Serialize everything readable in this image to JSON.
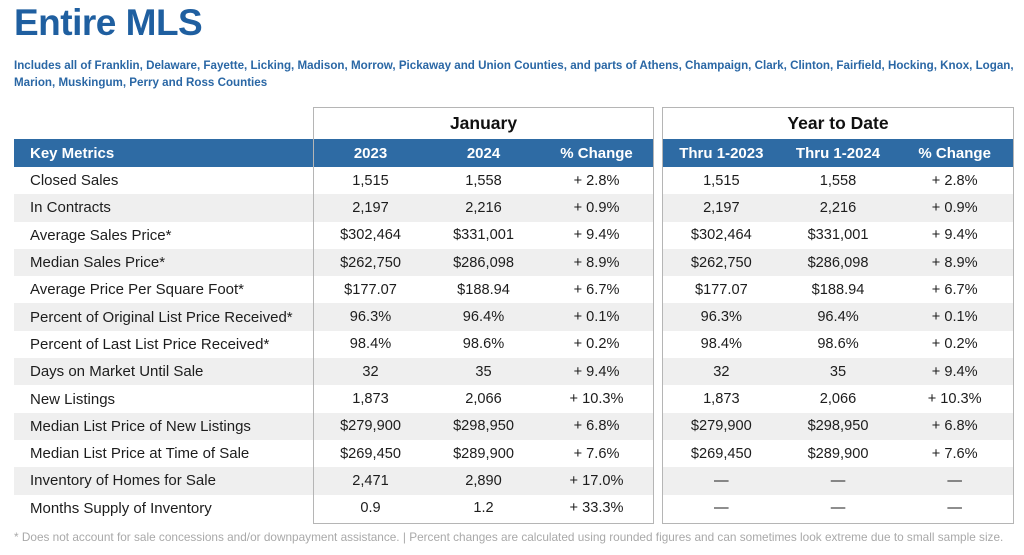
{
  "page": {
    "title": "Entire MLS",
    "subtitle": "Includes all of Franklin, Delaware, Fayette, Licking, Madison, Morrow, Pickaway and Union Counties, and parts of Athens, Champaign, Clark, Clinton, Fairfield, Hocking, Knox, Logan, Marion, Muskingum, Perry and Ross Counties",
    "footnote": "* Does not account for sale concessions and/or downpayment assistance. | Percent changes are calculated using rounded figures and can sometimes look extreme due to small sample size."
  },
  "colors": {
    "title_blue": "#1f5fa0",
    "header_bar_blue": "#2e6ba4",
    "row_stripe": "#efefef",
    "box_border": "#b5b5b5",
    "footnote_gray": "#a9a9a9"
  },
  "table": {
    "metrics_header": "Key Metrics",
    "groups": [
      {
        "label": "January",
        "columns": [
          "2023",
          "2024",
          "% Change"
        ]
      },
      {
        "label": "Year to Date",
        "columns": [
          "Thru 1-2023",
          "Thru 1-2024",
          "% Change"
        ]
      }
    ],
    "rows": [
      {
        "metric": "Closed Sales",
        "january": [
          "1,515",
          "1,558",
          "+ 2.8%"
        ],
        "ytd": [
          "1,515",
          "1,558",
          "+ 2.8%"
        ]
      },
      {
        "metric": "In Contracts",
        "january": [
          "2,197",
          "2,216",
          "+ 0.9%"
        ],
        "ytd": [
          "2,197",
          "2,216",
          "+ 0.9%"
        ]
      },
      {
        "metric": "Average Sales Price*",
        "january": [
          "$302,464",
          "$331,001",
          "+ 9.4%"
        ],
        "ytd": [
          "$302,464",
          "$331,001",
          "+ 9.4%"
        ]
      },
      {
        "metric": "Median Sales Price*",
        "january": [
          "$262,750",
          "$286,098",
          "+ 8.9%"
        ],
        "ytd": [
          "$262,750",
          "$286,098",
          "+ 8.9%"
        ]
      },
      {
        "metric": "Average Price Per Square Foot*",
        "january": [
          "$177.07",
          "$188.94",
          "+ 6.7%"
        ],
        "ytd": [
          "$177.07",
          "$188.94",
          "+ 6.7%"
        ]
      },
      {
        "metric": "Percent of Original List Price Received*",
        "january": [
          "96.3%",
          "96.4%",
          "+ 0.1%"
        ],
        "ytd": [
          "96.3%",
          "96.4%",
          "+ 0.1%"
        ]
      },
      {
        "metric": "Percent of Last List Price Received*",
        "january": [
          "98.4%",
          "98.6%",
          "+ 0.2%"
        ],
        "ytd": [
          "98.4%",
          "98.6%",
          "+ 0.2%"
        ]
      },
      {
        "metric": "Days on Market Until Sale",
        "january": [
          "32",
          "35",
          "+ 9.4%"
        ],
        "ytd": [
          "32",
          "35",
          "+ 9.4%"
        ]
      },
      {
        "metric": "New Listings",
        "january": [
          "1,873",
          "2,066",
          "+ 10.3%"
        ],
        "ytd": [
          "1,873",
          "2,066",
          "+ 10.3%"
        ]
      },
      {
        "metric": "Median List Price of New Listings",
        "january": [
          "$279,900",
          "$298,950",
          "+ 6.8%"
        ],
        "ytd": [
          "$279,900",
          "$298,950",
          "+ 6.8%"
        ]
      },
      {
        "metric": "Median List Price at Time of Sale",
        "january": [
          "$269,450",
          "$289,900",
          "+ 7.6%"
        ],
        "ytd": [
          "$269,450",
          "$289,900",
          "+ 7.6%"
        ]
      },
      {
        "metric": "Inventory of Homes for Sale",
        "january": [
          "2,471",
          "2,890",
          "+ 17.0%"
        ],
        "ytd": [
          "—",
          "—",
          "—"
        ]
      },
      {
        "metric": "Months Supply of Inventory",
        "january": [
          "0.9",
          "1.2",
          "+ 33.3%"
        ],
        "ytd": [
          "—",
          "—",
          "—"
        ]
      }
    ]
  }
}
